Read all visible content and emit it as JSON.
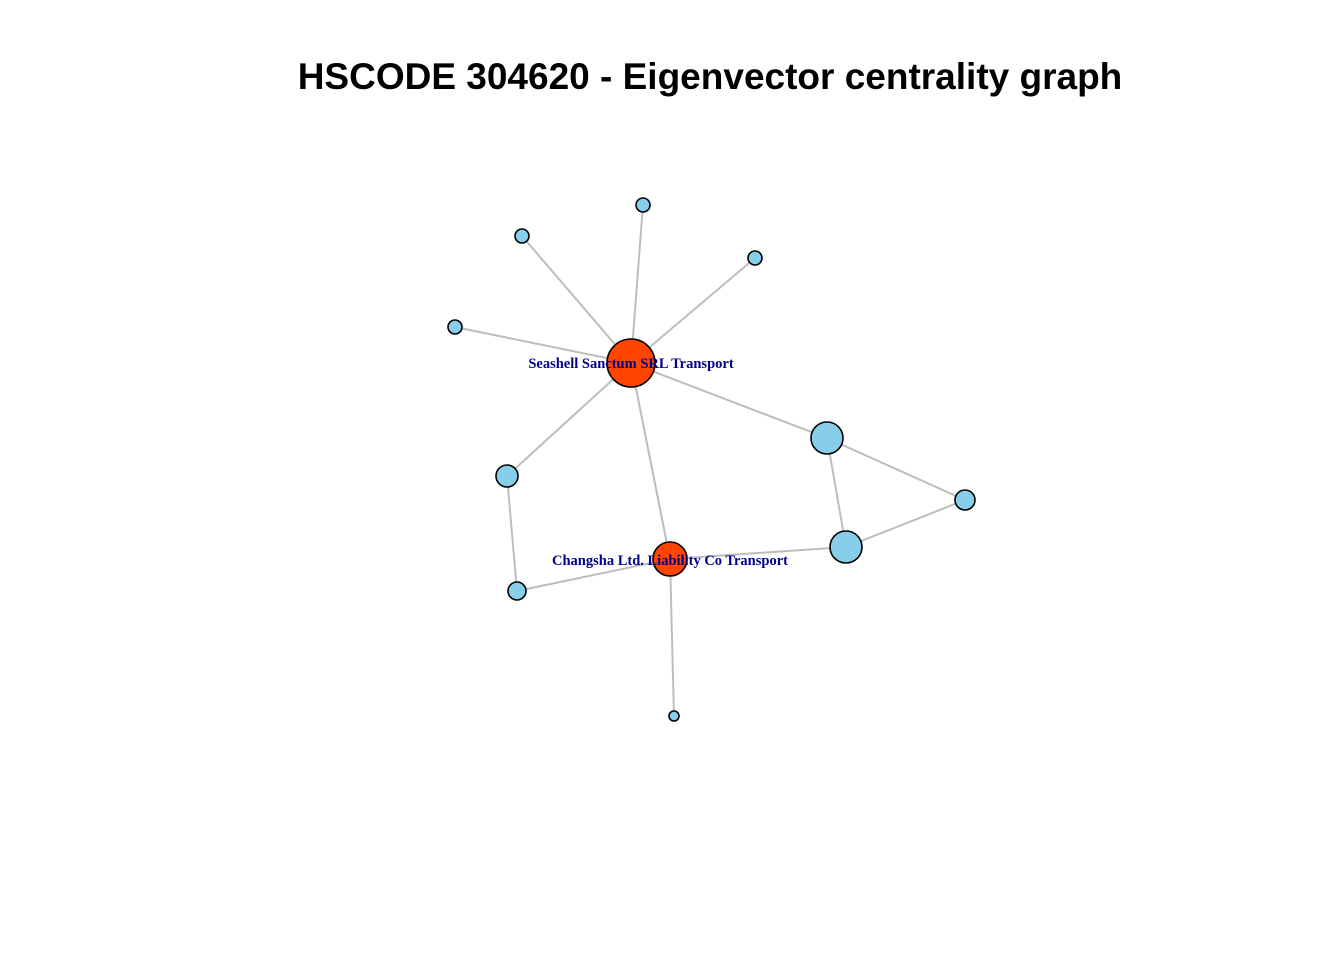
{
  "title": "HSCODE 304620 - Eigenvector centrality graph",
  "colors": {
    "highlight": "#ff4500",
    "default": "#87ceeb",
    "edge": "#bdbdbd",
    "label": "#00008b"
  },
  "nodes": [
    {
      "id": "seashell",
      "label": "Seashell Sanctum SRL Transport",
      "highlight": true,
      "size": 24
    },
    {
      "id": "changsha",
      "label": "Changsha Ltd. Liability Co Transport",
      "highlight": true,
      "size": 17
    },
    {
      "id": "n_top1",
      "label": "",
      "highlight": false,
      "size": 7
    },
    {
      "id": "n_top2",
      "label": "",
      "highlight": false,
      "size": 7
    },
    {
      "id": "n_top3",
      "label": "",
      "highlight": false,
      "size": 7
    },
    {
      "id": "n_left",
      "label": "",
      "highlight": false,
      "size": 7
    },
    {
      "id": "n_right1",
      "label": "",
      "highlight": false,
      "size": 16
    },
    {
      "id": "n_right2",
      "label": "",
      "highlight": false,
      "size": 10
    },
    {
      "id": "n_right3",
      "label": "",
      "highlight": false,
      "size": 16
    },
    {
      "id": "n_mid_left",
      "label": "",
      "highlight": false,
      "size": 11
    },
    {
      "id": "n_low_left",
      "label": "",
      "highlight": false,
      "size": 9
    },
    {
      "id": "n_bottom",
      "label": "",
      "highlight": false,
      "size": 5
    }
  ],
  "edges": [
    [
      "seashell",
      "n_top1"
    ],
    [
      "seashell",
      "n_top2"
    ],
    [
      "seashell",
      "n_top3"
    ],
    [
      "seashell",
      "n_left"
    ],
    [
      "seashell",
      "n_right1"
    ],
    [
      "seashell",
      "n_mid_left"
    ],
    [
      "seashell",
      "changsha"
    ],
    [
      "n_right1",
      "n_right2"
    ],
    [
      "n_right1",
      "n_right3"
    ],
    [
      "n_right2",
      "n_right3"
    ],
    [
      "n_right3",
      "changsha"
    ],
    [
      "n_mid_left",
      "n_low_left"
    ],
    [
      "n_low_left",
      "changsha"
    ],
    [
      "changsha",
      "n_bottom"
    ]
  ]
}
